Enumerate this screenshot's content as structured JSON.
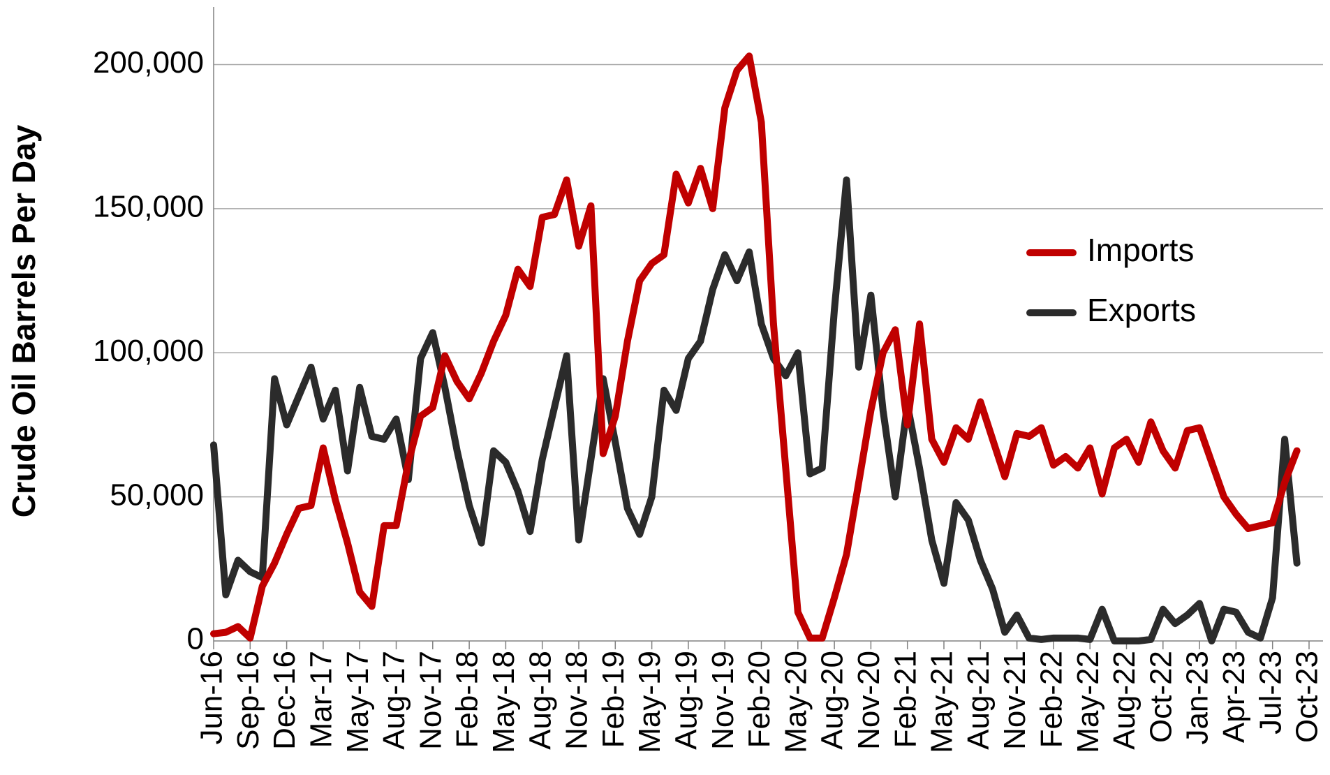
{
  "chart_data": {
    "type": "line",
    "y_label": "Crude Oil Barrels Per Day",
    "categories": [
      "Jun-16",
      null,
      null,
      "Sep-16",
      null,
      null,
      "Dec-16",
      null,
      null,
      "Mar-17",
      null,
      null,
      "May-17",
      null,
      null,
      "Aug-17",
      null,
      null,
      "Nov-17",
      null,
      null,
      "Feb-18",
      null,
      null,
      "May-18",
      null,
      null,
      "Aug-18",
      null,
      null,
      "Nov-18",
      null,
      null,
      "Feb-19",
      null,
      null,
      "May-19",
      null,
      null,
      "Aug-19",
      null,
      null,
      "Nov-19",
      null,
      null,
      "Feb-20",
      null,
      null,
      "May-20",
      null,
      null,
      "Aug-20",
      null,
      null,
      "Nov-20",
      null,
      null,
      "Feb-21",
      null,
      null,
      "May-21",
      null,
      null,
      "Aug-21",
      null,
      null,
      "Nov-21",
      null,
      null,
      "Feb-22",
      null,
      null,
      "May-22",
      null,
      null,
      "Aug-22",
      null,
      null,
      "Oct-22",
      null,
      null,
      "Jan-23",
      null,
      null,
      "Apr-23",
      null,
      null,
      "Jul-23",
      null,
      null,
      "Oct-23"
    ],
    "series": [
      {
        "name": "Imports",
        "color": "#c00000",
        "values": [
          2500,
          3000,
          5000,
          1000,
          19000,
          27000,
          37000,
          46000,
          47000,
          67000,
          49000,
          34000,
          17000,
          12000,
          40000,
          40000,
          62000,
          78000,
          81000,
          99000,
          90000,
          84000,
          93000,
          104000,
          113000,
          129000,
          123000,
          147000,
          148000,
          160000,
          137000,
          151000,
          65000,
          78000,
          104000,
          125000,
          131000,
          134000,
          162000,
          152000,
          164000,
          150000,
          185000,
          198000,
          203000,
          180000,
          110000,
          60000,
          10000,
          1000,
          1000,
          15000,
          30000,
          55000,
          80000,
          100000,
          108000,
          75000,
          110000,
          70000,
          62000,
          74000,
          70000,
          83000,
          70000,
          57000,
          72000,
          71000,
          74000,
          61000,
          64000,
          60000,
          67000,
          51000,
          67000,
          70000,
          62000,
          76000,
          66000,
          60000,
          73000,
          74000,
          62000,
          50000,
          44000,
          39000,
          40000,
          41000,
          55000,
          66000,
          null
        ]
      },
      {
        "name": "Exports",
        "color": "#2b2b2b",
        "values": [
          68000,
          16000,
          28000,
          24000,
          22000,
          91000,
          75000,
          85000,
          95000,
          77000,
          87000,
          59000,
          88000,
          71000,
          70000,
          77000,
          56000,
          98000,
          107000,
          88000,
          66000,
          47000,
          34000,
          66000,
          62000,
          52000,
          38000,
          63000,
          81000,
          99000,
          35000,
          63000,
          91000,
          69000,
          46000,
          37000,
          50000,
          87000,
          80000,
          98000,
          104000,
          122000,
          134000,
          125000,
          135000,
          110000,
          98000,
          92000,
          100000,
          58000,
          60000,
          115000,
          160000,
          95000,
          120000,
          80000,
          50000,
          82000,
          60000,
          35000,
          20000,
          48000,
          42000,
          28000,
          18000,
          3000,
          9000,
          1000,
          500,
          1000,
          1000,
          1000,
          500,
          11000,
          0,
          0,
          0,
          500,
          11000,
          6000,
          9000,
          13000,
          0,
          11000,
          10000,
          3000,
          1000,
          15000,
          70000,
          27000,
          null
        ]
      }
    ],
    "ylim": [
      0,
      220000
    ],
    "yticks": [
      0,
      {
        "value": 50000,
        "label": "50,000"
      },
      {
        "value": 100000,
        "label": "100,000"
      },
      {
        "value": 150000,
        "label": "150,000"
      },
      {
        "value": 200000,
        "label": "200,000"
      }
    ],
    "grid": true,
    "legend": "right"
  }
}
